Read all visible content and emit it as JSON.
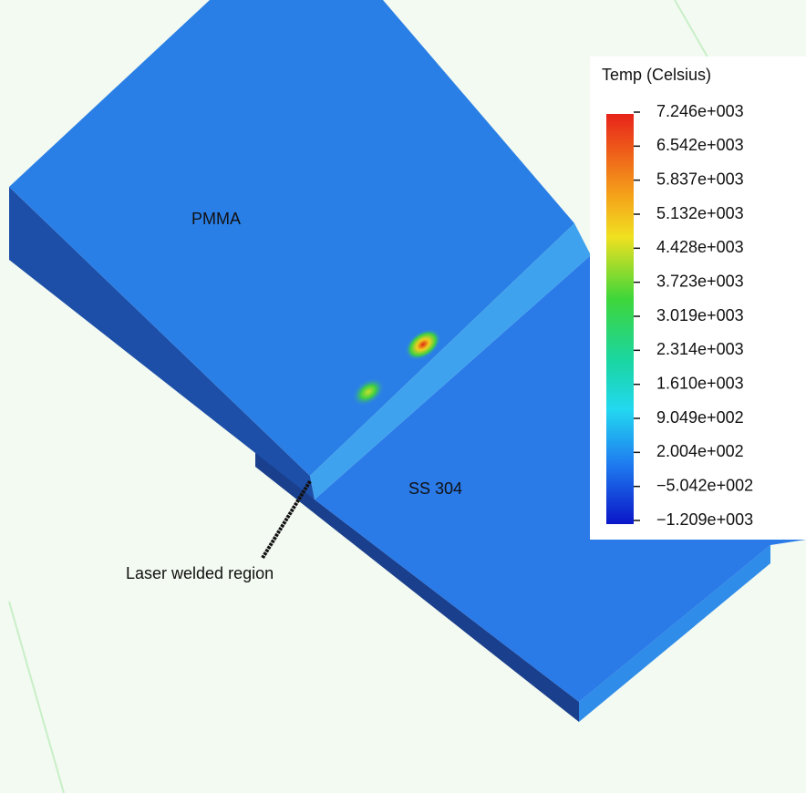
{
  "legend": {
    "title": "Temp (Celsius)",
    "labels": [
      "7.246e+003",
      "6.542e+003",
      "5.837e+003",
      "5.132e+003",
      "4.428e+003",
      "3.723e+003",
      "3.019e+003",
      "2.314e+003",
      "1.610e+003",
      "9.049e+002",
      "2.004e+002",
      "−5.042e+002",
      "−1.209e+003"
    ]
  },
  "labels": {
    "top_plate": "PMMA",
    "bottom_plate": "SS 304",
    "weld": "Laser welded region"
  }
}
